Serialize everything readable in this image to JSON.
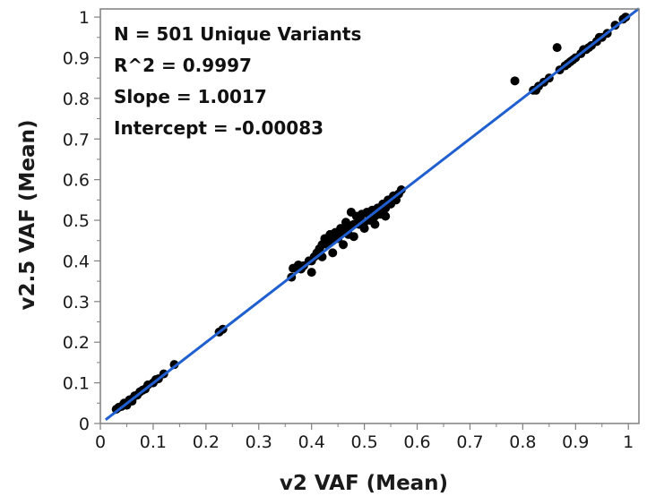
{
  "chart_data": {
    "type": "scatter",
    "xlabel": "v2 VAF (Mean)",
    "ylabel": "v2.5 VAF (Mean)",
    "xlim": [
      0,
      1.02
    ],
    "ylim": [
      0,
      1.02
    ],
    "xticks": [
      0,
      0.1,
      0.2,
      0.3,
      0.4,
      0.5,
      0.6,
      0.7,
      0.8,
      0.9,
      1
    ],
    "yticks": [
      0,
      0.1,
      0.2,
      0.3,
      0.4,
      0.5,
      0.6,
      0.7,
      0.8,
      0.9,
      1
    ],
    "xtick_labels": [
      "0",
      "0.1",
      "0.2",
      "0.3",
      "0.4",
      "0.5",
      "0.6",
      "0.7",
      "0.8",
      "0.9",
      "1"
    ],
    "ytick_labels": [
      "0",
      "0.1",
      "0.2",
      "0.3",
      "0.4",
      "0.5",
      "0.6",
      "0.7",
      "0.8",
      "0.9",
      "1"
    ],
    "grid": false,
    "annotations": [
      "N = 501 Unique Variants",
      "R^2 = 0.9997",
      "Slope = 1.0017",
      "Intercept = -0.00083"
    ],
    "fit_line": {
      "slope": 1.0017,
      "intercept": -0.00083,
      "x_range": [
        0.01,
        1.02
      ]
    },
    "colors": {
      "points": "#000000",
      "fit_line": "#1f5fcf",
      "axes": "#7f7f7f"
    },
    "points": [
      [
        0.03,
        0.035
      ],
      [
        0.035,
        0.04
      ],
      [
        0.04,
        0.042
      ],
      [
        0.045,
        0.05
      ],
      [
        0.05,
        0.05
      ],
      [
        0.055,
        0.058
      ],
      [
        0.06,
        0.06
      ],
      [
        0.065,
        0.068
      ],
      [
        0.07,
        0.07
      ],
      [
        0.075,
        0.078
      ],
      [
        0.08,
        0.082
      ],
      [
        0.085,
        0.085
      ],
      [
        0.09,
        0.095
      ],
      [
        0.1,
        0.1
      ],
      [
        0.105,
        0.108
      ],
      [
        0.11,
        0.11
      ],
      [
        0.12,
        0.122
      ],
      [
        0.14,
        0.145
      ],
      [
        0.05,
        0.045
      ],
      [
        0.06,
        0.055
      ],
      [
        0.225,
        0.225
      ],
      [
        0.232,
        0.232
      ],
      [
        0.362,
        0.36
      ],
      [
        0.365,
        0.382
      ],
      [
        0.375,
        0.39
      ],
      [
        0.385,
        0.388
      ],
      [
        0.395,
        0.4
      ],
      [
        0.4,
        0.372
      ],
      [
        0.405,
        0.41
      ],
      [
        0.41,
        0.42
      ],
      [
        0.415,
        0.43
      ],
      [
        0.42,
        0.44
      ],
      [
        0.425,
        0.455
      ],
      [
        0.43,
        0.44
      ],
      [
        0.435,
        0.465
      ],
      [
        0.44,
        0.45
      ],
      [
        0.445,
        0.47
      ],
      [
        0.45,
        0.46
      ],
      [
        0.455,
        0.48
      ],
      [
        0.46,
        0.47
      ],
      [
        0.465,
        0.495
      ],
      [
        0.47,
        0.48
      ],
      [
        0.475,
        0.52
      ],
      [
        0.48,
        0.49
      ],
      [
        0.485,
        0.51
      ],
      [
        0.49,
        0.5
      ],
      [
        0.495,
        0.515
      ],
      [
        0.5,
        0.495
      ],
      [
        0.505,
        0.52
      ],
      [
        0.51,
        0.5
      ],
      [
        0.515,
        0.525
      ],
      [
        0.52,
        0.51
      ],
      [
        0.525,
        0.53
      ],
      [
        0.53,
        0.515
      ],
      [
        0.535,
        0.54
      ],
      [
        0.54,
        0.53
      ],
      [
        0.545,
        0.55
      ],
      [
        0.55,
        0.54
      ],
      [
        0.555,
        0.56
      ],
      [
        0.56,
        0.55
      ],
      [
        0.565,
        0.565
      ],
      [
        0.57,
        0.575
      ],
      [
        0.44,
        0.42
      ],
      [
        0.46,
        0.44
      ],
      [
        0.48,
        0.46
      ],
      [
        0.5,
        0.48
      ],
      [
        0.52,
        0.49
      ],
      [
        0.54,
        0.51
      ],
      [
        0.45,
        0.455
      ],
      [
        0.47,
        0.465
      ],
      [
        0.49,
        0.49
      ],
      [
        0.51,
        0.51
      ],
      [
        0.53,
        0.525
      ],
      [
        0.55,
        0.545
      ],
      [
        0.42,
        0.41
      ],
      [
        0.4,
        0.4
      ],
      [
        0.38,
        0.38
      ],
      [
        0.785,
        0.843
      ],
      [
        0.82,
        0.82
      ],
      [
        0.825,
        0.82
      ],
      [
        0.83,
        0.83
      ],
      [
        0.84,
        0.84
      ],
      [
        0.85,
        0.85
      ],
      [
        0.865,
        0.925
      ],
      [
        0.87,
        0.87
      ],
      [
        0.88,
        0.88
      ],
      [
        0.885,
        0.885
      ],
      [
        0.89,
        0.89
      ],
      [
        0.895,
        0.895
      ],
      [
        0.9,
        0.9
      ],
      [
        0.91,
        0.91
      ],
      [
        0.915,
        0.92
      ],
      [
        0.92,
        0.92
      ],
      [
        0.925,
        0.925
      ],
      [
        0.93,
        0.93
      ],
      [
        0.94,
        0.94
      ],
      [
        0.945,
        0.95
      ],
      [
        0.95,
        0.95
      ],
      [
        0.96,
        0.96
      ],
      [
        0.975,
        0.98
      ],
      [
        0.99,
        0.995
      ],
      [
        0.995,
        1.0
      ]
    ]
  }
}
